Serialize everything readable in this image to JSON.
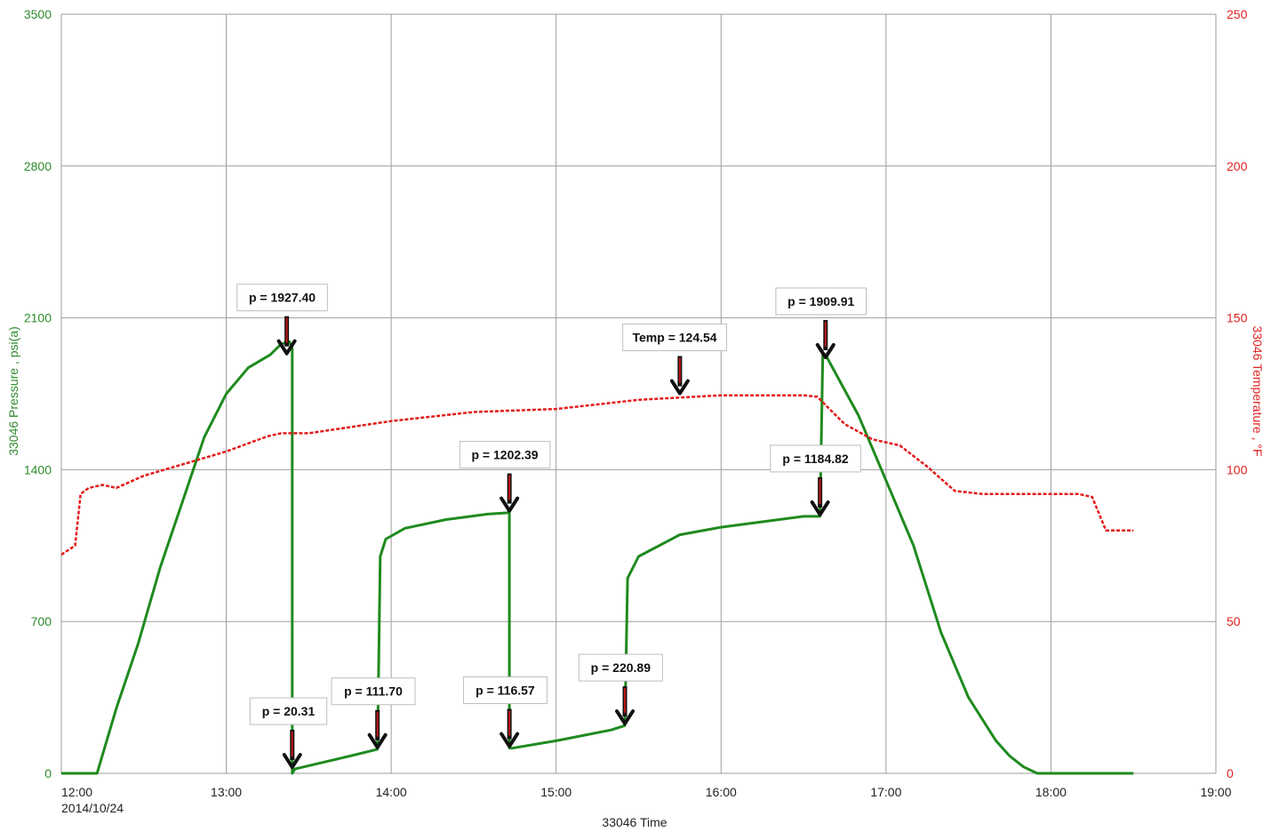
{
  "chart_data": {
    "type": "line",
    "title": "",
    "xlabel": "33046 Time",
    "ylabel_left": "33046 Pressure , psi(a)",
    "ylabel_right": "33046 Temperature , °F",
    "date_label": "2014/10/24",
    "xlim": [
      "12:00",
      "19:00"
    ],
    "x_ticks": [
      "12:00",
      "13:00",
      "14:00",
      "15:00",
      "16:00",
      "17:00",
      "18:00",
      "19:00"
    ],
    "ylim_left": [
      0,
      3500
    ],
    "y_ticks_left": [
      "0",
      "700",
      "1400",
      "2100",
      "2800",
      "3500"
    ],
    "ylim_right": [
      0,
      250
    ],
    "y_ticks_right": [
      "0",
      "50",
      "100",
      "150",
      "200",
      "250"
    ],
    "grid": true,
    "colors": {
      "pressure": "#1f8a1f",
      "temperature": "#e41a1a",
      "left_axis": "#2e8b2e",
      "right_axis": "#e02020"
    },
    "series": [
      {
        "axis": "left",
        "x": [
          "12:00",
          "12:08",
          "12:13",
          "12:20",
          "12:28",
          "12:36",
          "12:44",
          "12:52",
          "13:00",
          "13:08",
          "13:16",
          "13:20",
          "13:23",
          "13:24",
          "13:24",
          "13:25",
          "13:35",
          "13:45",
          "13:55",
          "13:56",
          "13:58",
          "14:05",
          "14:20",
          "14:35",
          "14:43",
          "14:43",
          "14:44",
          "15:00",
          "15:20",
          "15:25",
          "15:26",
          "15:30",
          "15:45",
          "16:00",
          "16:15",
          "16:30",
          "16:36",
          "16:37",
          "16:38",
          "16:50",
          "17:00",
          "17:10",
          "17:20",
          "17:30",
          "17:40",
          "17:45",
          "17:50",
          "17:55",
          "18:00",
          "18:30"
        ],
        "values": [
          0,
          0,
          0,
          300,
          600,
          950,
          1250,
          1550,
          1750,
          1870,
          1930,
          1980,
          1990,
          1960,
          0,
          20,
          50,
          80,
          111,
          1000,
          1080,
          1130,
          1170,
          1195,
          1202,
          117,
          116,
          150,
          200,
          220,
          900,
          1000,
          1100,
          1135,
          1160,
          1185,
          1185,
          1930,
          1930,
          1650,
          1350,
          1050,
          650,
          350,
          150,
          80,
          30,
          0,
          0,
          0
        ]
      },
      {
        "axis": "right",
        "x": [
          "12:00",
          "12:05",
          "12:07",
          "12:10",
          "12:15",
          "12:20",
          "12:25",
          "12:30",
          "12:45",
          "13:00",
          "13:15",
          "13:20",
          "13:30",
          "14:00",
          "14:30",
          "15:00",
          "15:30",
          "16:00",
          "16:30",
          "16:35",
          "16:45",
          "16:55",
          "17:05",
          "17:15",
          "17:25",
          "17:35",
          "17:50",
          "18:10",
          "18:15",
          "18:20",
          "18:30"
        ],
        "values": [
          72,
          75,
          92,
          94,
          95,
          94,
          96,
          98,
          102,
          106,
          111,
          112,
          112,
          116,
          119,
          120,
          123,
          124.5,
          124.5,
          124,
          115,
          110,
          108,
          101,
          93,
          92,
          92,
          92,
          91,
          80,
          80
        ]
      }
    ],
    "annotations": [
      {
        "text": "p = 1927.40",
        "x": "13:22",
        "y": 1927.4,
        "axis": "left"
      },
      {
        "text": "p = 20.31",
        "x": "13:24",
        "y": 20.31,
        "axis": "left"
      },
      {
        "text": "p = 111.70",
        "x": "13:55",
        "y": 111.7,
        "axis": "left"
      },
      {
        "text": "p = 1202.39",
        "x": "14:43",
        "y": 1202.39,
        "axis": "left"
      },
      {
        "text": "p = 116.57",
        "x": "14:43",
        "y": 116.57,
        "axis": "left"
      },
      {
        "text": "p = 220.89",
        "x": "15:25",
        "y": 220.89,
        "axis": "left"
      },
      {
        "text": "Temp = 124.54",
        "x": "15:45",
        "y": 124.54,
        "axis": "right"
      },
      {
        "text": "p = 1184.82",
        "x": "16:36",
        "y": 1184.82,
        "axis": "left"
      },
      {
        "text": "p = 1909.91",
        "x": "16:38",
        "y": 1909.91,
        "axis": "left"
      }
    ]
  }
}
